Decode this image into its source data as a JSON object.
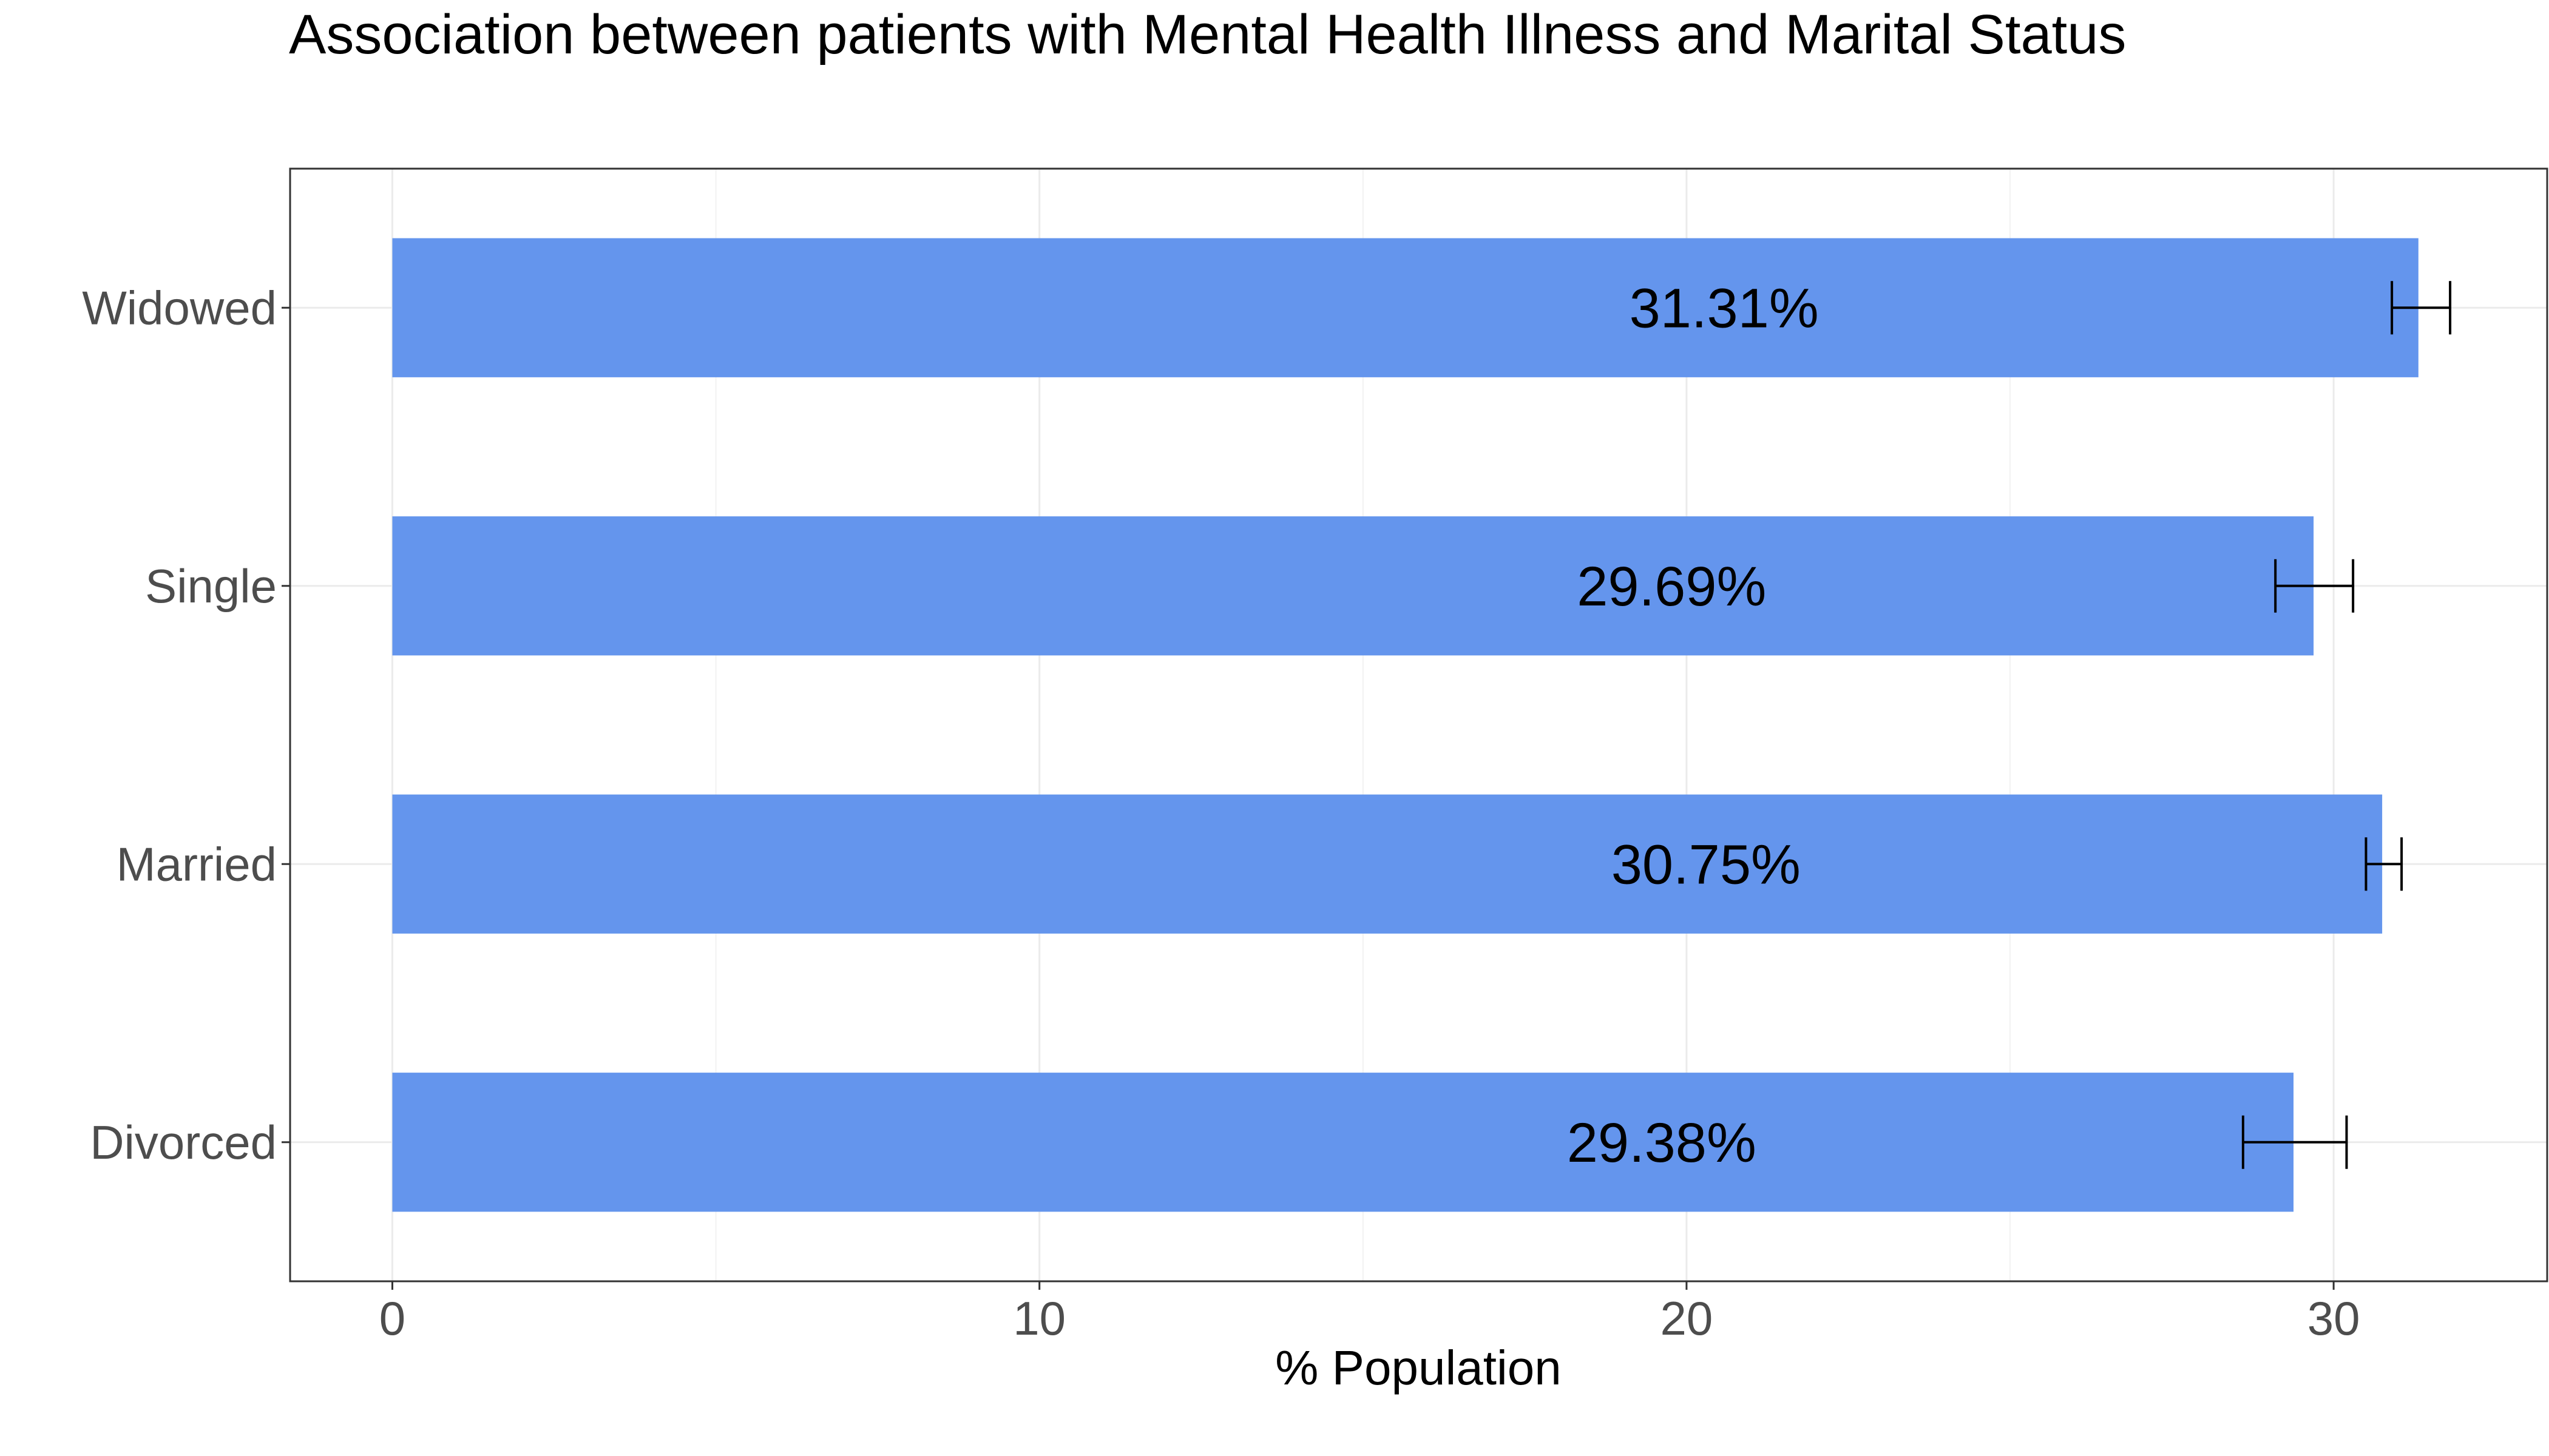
{
  "chart_data": {
    "type": "bar",
    "orientation": "horizontal",
    "title": "Association between patients with Mental Health Illness and Marital Status",
    "xlabel": "% Population",
    "ylabel": "",
    "categories": [
      "Divorced",
      "Married",
      "Single",
      "Widowed"
    ],
    "values": [
      29.38,
      30.75,
      29.69,
      31.31
    ],
    "data_labels": [
      "29.38%",
      "30.75%",
      "29.69%",
      "31.31%"
    ],
    "error_low": [
      28.6,
      30.5,
      29.1,
      30.9
    ],
    "error_high": [
      30.2,
      31.05,
      30.3,
      31.8
    ],
    "xlim": [
      -1.58,
      33.3
    ],
    "x_ticks": [
      0,
      10,
      20,
      30
    ],
    "x_tick_labels": [
      "0",
      "10",
      "20",
      "30"
    ],
    "grid": true,
    "legend": "none",
    "bar_color": "#6495ED"
  }
}
